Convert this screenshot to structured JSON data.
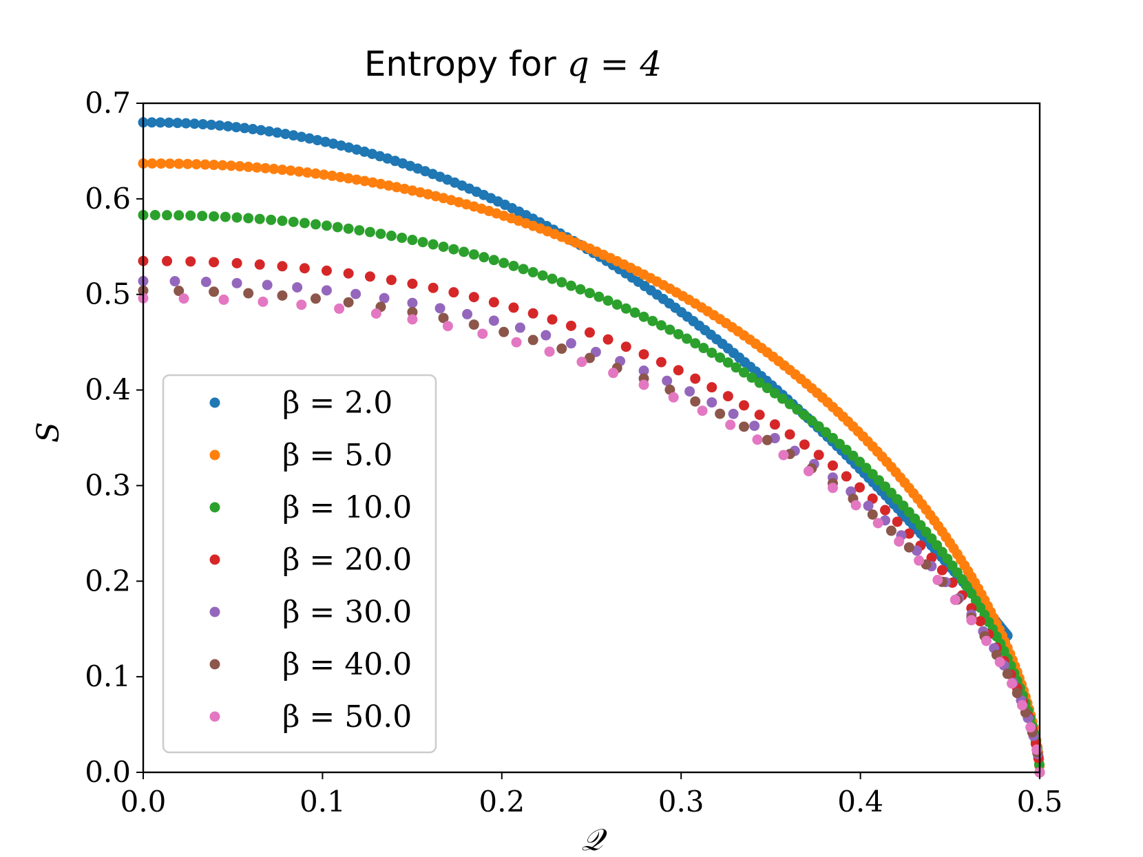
{
  "chart_data": {
    "type": "scatter",
    "title_prefix": "Entropy for ",
    "title_math": "q = 4",
    "xlabel": "𝒬",
    "ylabel": "S",
    "xlim": [
      0,
      0.5
    ],
    "ylim": [
      0,
      0.7
    ],
    "xticks": [
      0.0,
      0.1,
      0.2,
      0.3,
      0.4,
      0.5
    ],
    "yticks": [
      0.0,
      0.1,
      0.2,
      0.3,
      0.4,
      0.5,
      0.6,
      0.7
    ],
    "xtick_labels": [
      "0.0",
      "0.1",
      "0.2",
      "0.3",
      "0.4",
      "0.5"
    ],
    "ytick_labels": [
      "0.0",
      "0.1",
      "0.2",
      "0.3",
      "0.4",
      "0.5",
      "0.6",
      "0.7"
    ],
    "legend_position": "lower-left",
    "series": [
      {
        "name": "β = 2.0",
        "beta": 2.0,
        "color": "#1f77b4",
        "s0": 0.68,
        "q_end": 0.482,
        "s_end": 0.143,
        "n_points": 160
      },
      {
        "name": "β = 5.0",
        "beta": 5.0,
        "color": "#ff7f0e",
        "s0": 0.637,
        "q_end": 0.5,
        "s_end": 0.0,
        "n_points": 160
      },
      {
        "name": "β = 10.0",
        "beta": 10.0,
        "color": "#2ca02c",
        "s0": 0.583,
        "q_end": 0.5,
        "s_end": 0.0,
        "n_points": 120
      },
      {
        "name": "β = 20.0",
        "beta": 20.0,
        "color": "#d62728",
        "s0": 0.535,
        "q_end": 0.5,
        "s_end": 0.0,
        "n_points": 60
      },
      {
        "name": "β = 30.0",
        "beta": 30.0,
        "color": "#9467bd",
        "s0": 0.514,
        "q_end": 0.5,
        "s_end": 0.0,
        "n_points": 45
      },
      {
        "name": "β = 40.0",
        "beta": 40.0,
        "color": "#8c564b",
        "s0": 0.504,
        "q_end": 0.5,
        "s_end": 0.0,
        "n_points": 40
      },
      {
        "name": "β = 50.0",
        "beta": 50.0,
        "color": "#e377c2",
        "s0": 0.496,
        "q_end": 0.5,
        "s_end": 0.0,
        "n_points": 35
      }
    ]
  }
}
